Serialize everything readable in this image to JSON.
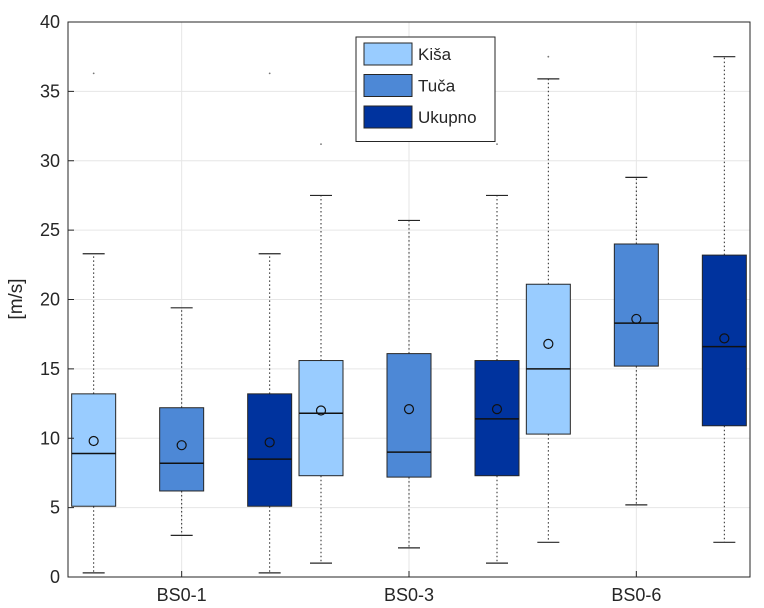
{
  "chart_data": {
    "type": "boxplot",
    "ylabel": "[m/s]",
    "ylim": [
      0,
      40
    ],
    "yticks": [
      0,
      5,
      10,
      15,
      20,
      25,
      30,
      35,
      40
    ],
    "grid": true,
    "legend_position": "top-center",
    "categories": [
      "BS0-1",
      "BS0-3",
      "BS0-6"
    ],
    "series": [
      {
        "name": "Kiša",
        "color": "#99ccff",
        "boxes": [
          {
            "whisker_low": 0.3,
            "q1": 5.1,
            "median": 8.9,
            "q3": 13.2,
            "whisker_high": 23.3,
            "mean": 9.8,
            "outliers": [
              36.3
            ]
          },
          {
            "whisker_low": 1.0,
            "q1": 7.3,
            "median": 11.8,
            "q3": 15.6,
            "whisker_high": 27.5,
            "mean": 12.0,
            "outliers": [
              31.2
            ]
          },
          {
            "whisker_low": 2.5,
            "q1": 10.3,
            "median": 15.0,
            "q3": 21.1,
            "whisker_high": 35.9,
            "mean": 16.8,
            "outliers": [
              37.5
            ]
          }
        ]
      },
      {
        "name": "Tuča",
        "color": "#4d88d6",
        "boxes": [
          {
            "whisker_low": 3.0,
            "q1": 6.2,
            "median": 8.2,
            "q3": 12.2,
            "whisker_high": 19.4,
            "mean": 9.5,
            "outliers": []
          },
          {
            "whisker_low": 2.1,
            "q1": 7.2,
            "median": 9.0,
            "q3": 16.1,
            "whisker_high": 25.7,
            "mean": 12.1,
            "outliers": []
          },
          {
            "whisker_low": 5.2,
            "q1": 15.2,
            "median": 18.3,
            "q3": 24.0,
            "whisker_high": 28.8,
            "mean": 18.6,
            "outliers": []
          }
        ]
      },
      {
        "name": "Ukupno",
        "color": "#00339e",
        "boxes": [
          {
            "whisker_low": 0.3,
            "q1": 5.1,
            "median": 8.5,
            "q3": 13.2,
            "whisker_high": 23.3,
            "mean": 9.7,
            "outliers": [
              36.3
            ]
          },
          {
            "whisker_low": 1.0,
            "q1": 7.3,
            "median": 11.4,
            "q3": 15.6,
            "whisker_high": 27.5,
            "mean": 12.1,
            "outliers": [
              31.2
            ]
          },
          {
            "whisker_low": 2.5,
            "q1": 10.9,
            "median": 16.6,
            "q3": 23.2,
            "whisker_high": 37.5,
            "mean": 17.2,
            "outliers": []
          }
        ]
      }
    ]
  }
}
